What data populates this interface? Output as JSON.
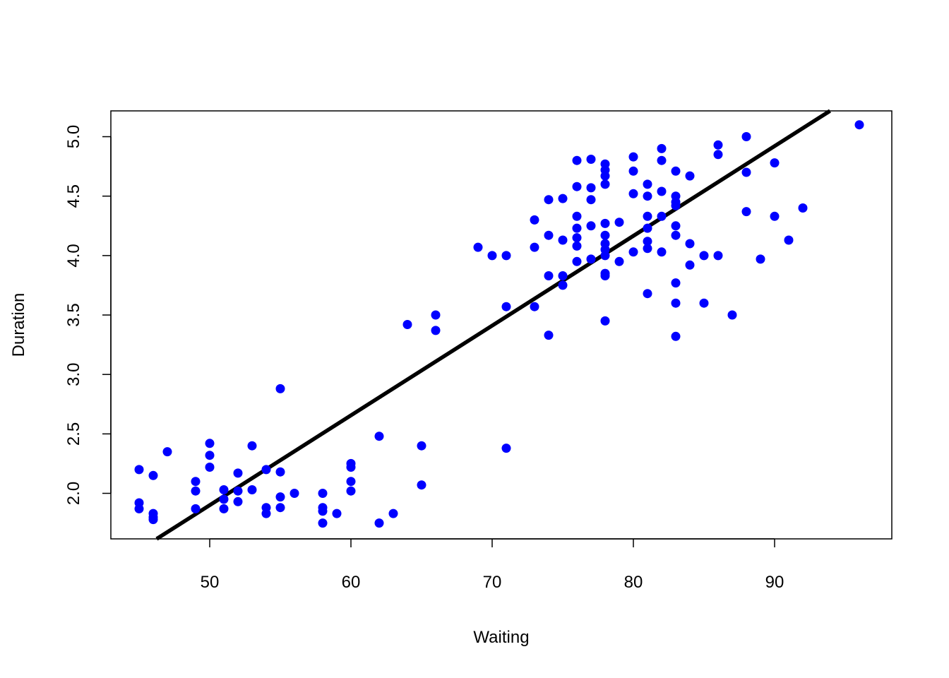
{
  "chart_data": {
    "type": "scatter",
    "title": "",
    "xlabel": "Waiting",
    "ylabel": "Duration",
    "xlim": [
      43,
      98.3
    ],
    "ylim": [
      1.617,
      5.217
    ],
    "xticks": [
      50,
      60,
      70,
      80,
      90
    ],
    "yticks": [
      2.0,
      2.5,
      3.0,
      3.5,
      4.0,
      4.5,
      5.0
    ],
    "xtick_labels": [
      "50",
      "60",
      "70",
      "80",
      "90"
    ],
    "ytick_labels": [
      "2.0",
      "2.5",
      "3.0",
      "3.5",
      "4.0",
      "4.5",
      "5.0"
    ],
    "grid": false,
    "legend": "none",
    "point_color": "#0000ff",
    "line_color": "#000000",
    "fit_line": {
      "slope": 0.0755,
      "intercept": -1.8744
    },
    "points": [
      [
        45,
        2.2
      ],
      [
        45,
        1.92
      ],
      [
        45,
        1.87
      ],
      [
        46,
        2.15
      ],
      [
        46,
        1.83
      ],
      [
        46,
        1.8
      ],
      [
        46,
        1.78
      ],
      [
        47,
        2.35
      ],
      [
        49,
        2.1
      ],
      [
        49,
        2.02
      ],
      [
        49,
        1.87
      ],
      [
        50,
        2.42
      ],
      [
        50,
        2.32
      ],
      [
        50,
        2.22
      ],
      [
        51,
        2.03
      ],
      [
        51,
        1.95
      ],
      [
        51,
        1.87
      ],
      [
        52,
        2.17
      ],
      [
        52,
        2.02
      ],
      [
        52,
        1.93
      ],
      [
        53,
        2.4
      ],
      [
        53,
        2.03
      ],
      [
        54,
        2.2
      ],
      [
        54,
        1.88
      ],
      [
        54,
        1.83
      ],
      [
        55,
        2.88
      ],
      [
        55,
        2.18
      ],
      [
        55,
        1.97
      ],
      [
        55,
        1.88
      ],
      [
        56,
        2.0
      ],
      [
        58,
        2.0
      ],
      [
        58,
        1.88
      ],
      [
        58,
        1.85
      ],
      [
        58,
        1.75
      ],
      [
        59,
        1.83
      ],
      [
        60,
        2.25
      ],
      [
        60,
        2.22
      ],
      [
        60,
        2.1
      ],
      [
        60,
        2.02
      ],
      [
        62,
        2.48
      ],
      [
        62,
        1.75
      ],
      [
        63,
        1.83
      ],
      [
        64,
        3.42
      ],
      [
        65,
        2.4
      ],
      [
        65,
        2.07
      ],
      [
        66,
        3.5
      ],
      [
        66,
        3.37
      ],
      [
        69,
        4.07
      ],
      [
        70,
        4.0
      ],
      [
        71,
        4.0
      ],
      [
        71,
        3.57
      ],
      [
        71,
        2.38
      ],
      [
        73,
        4.3
      ],
      [
        73,
        4.07
      ],
      [
        73,
        3.57
      ],
      [
        74,
        4.47
      ],
      [
        74,
        4.17
      ],
      [
        74,
        3.83
      ],
      [
        74,
        3.33
      ],
      [
        75,
        4.48
      ],
      [
        75,
        4.13
      ],
      [
        75,
        3.83
      ],
      [
        75,
        3.75
      ],
      [
        76,
        4.8
      ],
      [
        76,
        4.58
      ],
      [
        76,
        4.33
      ],
      [
        76,
        4.23
      ],
      [
        76,
        4.15
      ],
      [
        76,
        4.08
      ],
      [
        76,
        3.95
      ],
      [
        77,
        4.81
      ],
      [
        77,
        4.57
      ],
      [
        77,
        4.47
      ],
      [
        77,
        4.25
      ],
      [
        77,
        3.97
      ],
      [
        78,
        4.77
      ],
      [
        78,
        4.72
      ],
      [
        78,
        4.67
      ],
      [
        78,
        4.6
      ],
      [
        78,
        4.27
      ],
      [
        78,
        4.17
      ],
      [
        78,
        4.1
      ],
      [
        78,
        4.05
      ],
      [
        78,
        4.0
      ],
      [
        78,
        3.85
      ],
      [
        78,
        3.83
      ],
      [
        78,
        3.45
      ],
      [
        79,
        4.28
      ],
      [
        79,
        3.95
      ],
      [
        80,
        4.83
      ],
      [
        80,
        4.71
      ],
      [
        80,
        4.52
      ],
      [
        80,
        4.03
      ],
      [
        81,
        4.6
      ],
      [
        81,
        4.5
      ],
      [
        81,
        4.33
      ],
      [
        81,
        4.23
      ],
      [
        81,
        4.12
      ],
      [
        81,
        4.06
      ],
      [
        81,
        3.68
      ],
      [
        82,
        4.9
      ],
      [
        82,
        4.8
      ],
      [
        82,
        4.54
      ],
      [
        82,
        4.33
      ],
      [
        82,
        4.03
      ],
      [
        83,
        4.71
      ],
      [
        83,
        4.5
      ],
      [
        83,
        4.45
      ],
      [
        83,
        4.42
      ],
      [
        83,
        4.25
      ],
      [
        83,
        4.17
      ],
      [
        83,
        3.77
      ],
      [
        83,
        3.6
      ],
      [
        83,
        3.32
      ],
      [
        84,
        4.67
      ],
      [
        84,
        4.1
      ],
      [
        84,
        3.92
      ],
      [
        85,
        4.0
      ],
      [
        85,
        3.6
      ],
      [
        86,
        4.93
      ],
      [
        86,
        4.85
      ],
      [
        86,
        4.0
      ],
      [
        87,
        3.5
      ],
      [
        88,
        5.0
      ],
      [
        88,
        4.7
      ],
      [
        88,
        4.37
      ],
      [
        89,
        3.97
      ],
      [
        90,
        4.78
      ],
      [
        90,
        4.33
      ],
      [
        91,
        4.13
      ],
      [
        92,
        4.4
      ],
      [
        96,
        5.1
      ]
    ]
  }
}
